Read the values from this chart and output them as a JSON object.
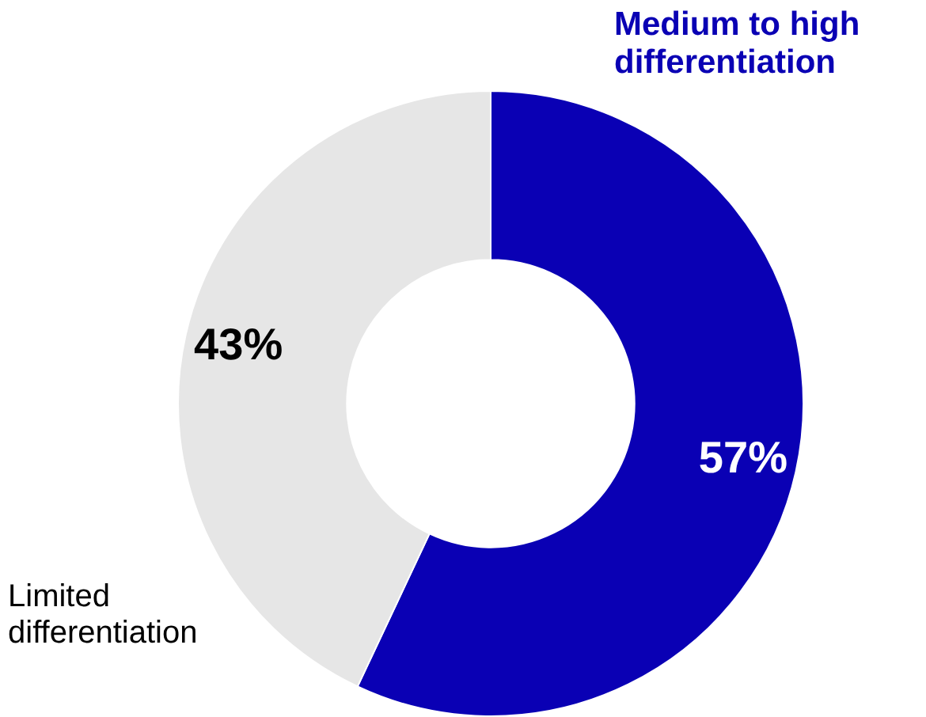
{
  "chart_data": {
    "type": "donut",
    "categories": [
      "Medium to high differentiation",
      "Limited differentiation"
    ],
    "values": [
      57,
      43
    ],
    "colors": [
      "#0a00b4",
      "#e6e6e6"
    ],
    "value_labels": [
      "57%",
      "43%"
    ],
    "legend": false
  }
}
